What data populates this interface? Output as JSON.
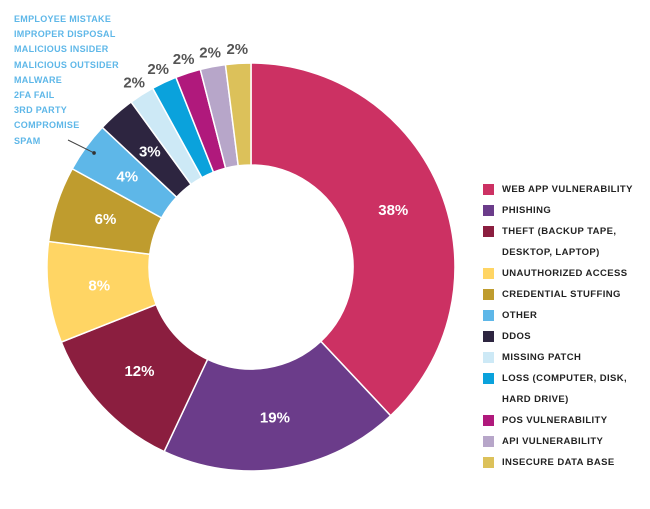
{
  "chart_data": {
    "type": "pie",
    "donut": true,
    "title": "",
    "slices": [
      {
        "label": "WEB APP VULNERABILITY",
        "value": 38,
        "display": "38%",
        "color": "#cc3163"
      },
      {
        "label": "PHISHING",
        "value": 19,
        "display": "19%",
        "color": "#6b3c8a"
      },
      {
        "label": "THEFT (BACKUP TAPE, DESKTOP, LAPTOP)",
        "value": 12,
        "display": "12%",
        "color": "#8b1e3f"
      },
      {
        "label": "UNAUTHORIZED ACCESS",
        "value": 8,
        "display": "8%",
        "color": "#ffd564"
      },
      {
        "label": "CREDENTIAL STUFFING",
        "value": 6,
        "display": "6%",
        "color": "#bf9c2e"
      },
      {
        "label": "OTHER",
        "value": 4,
        "display": "4%",
        "color": "#5eb7e8"
      },
      {
        "label": "DDOS",
        "value": 3,
        "display": "3%",
        "color": "#2d2540"
      },
      {
        "label": "MISSING PATCH",
        "value": 2,
        "display": "2%",
        "color": "#cde9f6"
      },
      {
        "label": "LOSS (COMPUTER, DISK, HARD DRIVE)",
        "value": 2,
        "display": "2%",
        "color": "#0aa2dc"
      },
      {
        "label": "POS VULNERABILITY",
        "value": 2,
        "display": "2%",
        "color": "#b0197c"
      },
      {
        "label": "API VULNERABILITY",
        "value": 2,
        "display": "2%",
        "color": "#b7a6c9"
      },
      {
        "label": "INSECURE DATA BASE",
        "value": 2,
        "display": "2%",
        "color": "#dcc15a"
      }
    ],
    "other_breakdown": [
      "EMPLOYEE MISTAKE",
      "IMPROPER DISPOSAL",
      "MALICIOUS INSIDER",
      "MALICIOUS OUTSIDER",
      "MALWARE",
      "2FA FAIL",
      "3RD PARTY",
      "COMPROMISE",
      "SPAM"
    ],
    "legend": {
      "placement": "right",
      "items": [
        {
          "line1": "WEB APP VULNERABILITY",
          "line2": "",
          "color": "#cc3163"
        },
        {
          "line1": "PHISHING",
          "line2": "",
          "color": "#6b3c8a"
        },
        {
          "line1": "THEFT (BACKUP TAPE,",
          "line2": "DESKTOP, LAPTOP)",
          "color": "#8b1e3f"
        },
        {
          "line1": "UNAUTHORIZED ACCESS",
          "line2": "",
          "color": "#ffd564"
        },
        {
          "line1": "CREDENTIAL STUFFING",
          "line2": "",
          "color": "#bf9c2e"
        },
        {
          "line1": "OTHER",
          "line2": "",
          "color": "#5eb7e8"
        },
        {
          "line1": "DDOS",
          "line2": "",
          "color": "#2d2540"
        },
        {
          "line1": "MISSING PATCH",
          "line2": "",
          "color": "#cde9f6"
        },
        {
          "line1": "LOSS (COMPUTER, DISK,",
          "line2": "HARD DRIVE)",
          "color": "#0aa2dc"
        },
        {
          "line1": "POS VULNERABILITY",
          "line2": "",
          "color": "#b0197c"
        },
        {
          "line1": "API VULNERABILITY",
          "line2": "",
          "color": "#b7a6c9"
        },
        {
          "line1": "INSECURE DATA BASE",
          "line2": "",
          "color": "#dcc15a"
        }
      ]
    }
  }
}
